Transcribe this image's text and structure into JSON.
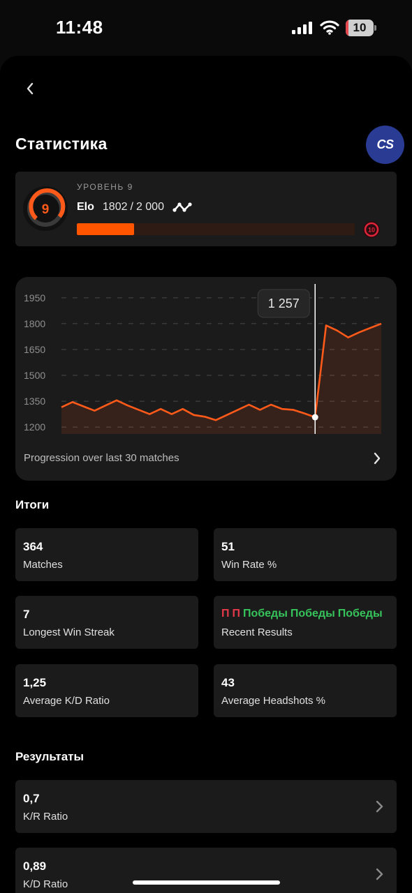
{
  "status_bar": {
    "time": "11:48",
    "battery_percent": "10",
    "battery_level": 0.1,
    "icons": [
      "cellular-signal-icon",
      "wifi-icon",
      "battery-icon"
    ]
  },
  "header": {
    "back_icon": "chevron-left-icon",
    "title": "Статистика",
    "game_logo_text": "CS"
  },
  "level": {
    "caption": "УРОВЕНЬ 9",
    "level_number": "9",
    "elo_label": "Elo",
    "elo_current": "1802",
    "elo_separator": "/",
    "elo_next": "2 000",
    "progress_fraction": 0.205,
    "next_level_badge": "10",
    "accent_color": "#ff5500",
    "next_level_color": "#e0243a"
  },
  "chart_data": {
    "type": "line",
    "y_ticks": [
      "1950",
      "1800",
      "1650",
      "1500",
      "1350",
      "1200"
    ],
    "y_tick_values": [
      1950,
      1800,
      1650,
      1500,
      1350,
      1200
    ],
    "ylim": [
      1160,
      1990
    ],
    "grid": true,
    "x": [
      1,
      2,
      3,
      4,
      5,
      6,
      7,
      8,
      9,
      10,
      11,
      12,
      13,
      14,
      15,
      16,
      17,
      18,
      19,
      20,
      21,
      22,
      23,
      24,
      25,
      26,
      27,
      28,
      29,
      30
    ],
    "values": [
      1315,
      1345,
      1320,
      1295,
      1325,
      1355,
      1325,
      1300,
      1275,
      1305,
      1275,
      1305,
      1270,
      1260,
      1240,
      1270,
      1300,
      1330,
      1300,
      1330,
      1305,
      1300,
      1280,
      1257,
      1790,
      1760,
      1720,
      1750,
      1775,
      1800
    ],
    "highlight_index": 23,
    "tooltip": "1 257",
    "caption": "Progression over last 30 matches",
    "line_color": "#ff5a1a"
  },
  "summary": {
    "title": "Итоги",
    "cards": [
      {
        "value": "364",
        "label": "Matches"
      },
      {
        "value": "51",
        "label": "Win Rate %"
      },
      {
        "value": "7",
        "label": "Longest Win Streak"
      },
      {
        "value": "",
        "label": "Recent Results"
      },
      {
        "value": "1,25",
        "label": "Average K/D Ratio"
      },
      {
        "value": "43",
        "label": "Average Headshots %"
      }
    ],
    "recent_results": [
      {
        "text": "П",
        "outcome": "loss"
      },
      {
        "text": "П",
        "outcome": "loss"
      },
      {
        "text": "Победы",
        "outcome": "win"
      },
      {
        "text": "Победы",
        "outcome": "win"
      },
      {
        "text": "Победы",
        "outcome": "win"
      }
    ],
    "win_color": "#37c35b",
    "loss_color": "#e23a4a"
  },
  "results": {
    "title": "Результаты",
    "items": [
      {
        "value": "0,7",
        "label": "K/R Ratio"
      },
      {
        "value": "0,89",
        "label": "K/D Ratio"
      }
    ]
  }
}
